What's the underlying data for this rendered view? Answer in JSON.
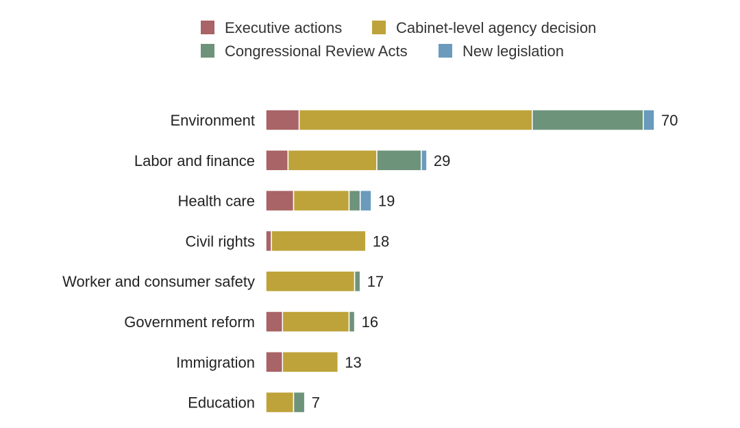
{
  "chart_data": {
    "type": "bar",
    "orientation": "horizontal",
    "stacked": true,
    "title": "",
    "xlabel": "",
    "ylabel": "",
    "grid": false,
    "legend_position": "top",
    "categories": [
      "Environment",
      "Labor and finance",
      "Health care",
      "Civil rights",
      "Worker and consumer safety",
      "Government reform",
      "Immigration",
      "Education"
    ],
    "totals": [
      70,
      29,
      19,
      18,
      17,
      16,
      13,
      7
    ],
    "series": [
      {
        "name": "Executive actions",
        "color": "#a86466",
        "values": [
          6,
          4,
          5,
          1,
          0,
          3,
          3,
          0
        ]
      },
      {
        "name": "Cabinet-level agency decision",
        "color": "#bea33a",
        "values": [
          42,
          16,
          10,
          17,
          16,
          12,
          10,
          5
        ]
      },
      {
        "name": "Congressional Review Acts",
        "color": "#6e937b",
        "values": [
          20,
          8,
          2,
          0,
          1,
          1,
          0,
          2
        ]
      },
      {
        "name": "New legislation",
        "color": "#6a9bbc",
        "values": [
          2,
          1,
          2,
          0,
          0,
          0,
          0,
          0
        ]
      }
    ]
  }
}
